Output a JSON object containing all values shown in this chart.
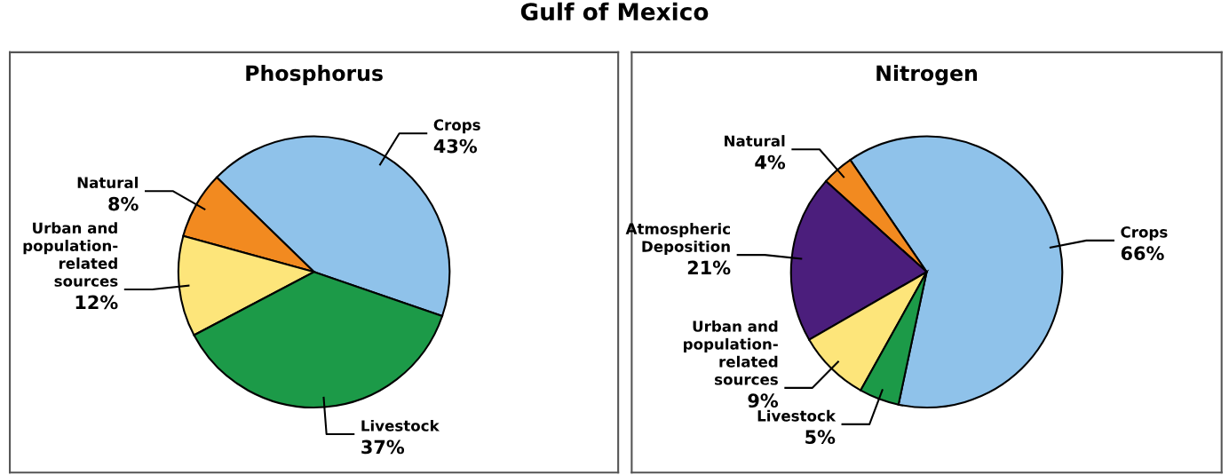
{
  "chart_data": [
    {
      "type": "pie",
      "title": "Phosphorus",
      "annotations": [
        "Gulf of Mexico"
      ],
      "categories": [
        "Crops",
        "Natural",
        "Urban and\npopulation-\nrelated\nsources",
        "Livestock"
      ],
      "values": [
        43,
        8,
        12,
        37
      ],
      "value_labels": [
        "43%",
        "8%",
        "12%",
        "37%"
      ],
      "colors": [
        "#8fc2ea",
        "#f28a20",
        "#fde57a",
        "#1c9a48"
      ]
    },
    {
      "type": "pie",
      "title": "Nitrogen",
      "categories": [
        "Crops",
        "Natural",
        "Atmospheric\nDeposition",
        "Urban and\npopulation-\nrelated\nsources",
        "Livestock"
      ],
      "values": [
        66,
        4,
        21,
        9,
        5
      ],
      "value_labels": [
        "66%",
        "4%",
        "21%",
        "9%",
        "5%"
      ],
      "colors": [
        "#8fc2ea",
        "#f28a20",
        "#4b1e7c",
        "#fde57a",
        "#1c9a48"
      ]
    }
  ]
}
